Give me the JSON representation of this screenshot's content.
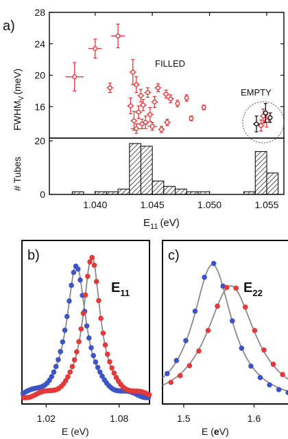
{
  "figure": {
    "panel_a": "a)",
    "panel_b": "b)",
    "panel_c": "c)"
  },
  "chart_data": [
    {
      "type": "scatter",
      "panel": "a-top",
      "ylabel_main": "FWHM",
      "ylabel_sub": "V",
      "ylabel_unit": "(meV)",
      "xlim": [
        1.036,
        1.0565
      ],
      "ylim": [
        12,
        28
      ],
      "yticks": [
        "16",
        "20",
        "24",
        "28"
      ],
      "annotations": [
        "FILLED",
        "EMPTY"
      ],
      "colors": {
        "filled": "#e23a3a",
        "empty_black": "#111111"
      },
      "series": [
        {
          "points": [
            {
              "x": 1.0382,
              "y": 19.8,
              "xerr": 0.0008,
              "yerr": 1.8
            },
            {
              "x": 1.04,
              "y": 23.4,
              "xerr": 0.0006,
              "yerr": 1.2
            },
            {
              "x": 1.042,
              "y": 25.0,
              "xerr": 0.0006,
              "yerr": 1.5
            },
            {
              "x": 1.0413,
              "y": 18.4,
              "xerr": 0.0003,
              "yerr": 0.6
            },
            {
              "x": 1.0433,
              "y": 20.4,
              "xerr": 0.0003,
              "yerr": 1.6
            },
            {
              "x": 1.0436,
              "y": 18.8,
              "xerr": 0.0003,
              "yerr": 1.0
            },
            {
              "x": 1.044,
              "y": 17.4,
              "xerr": 0.0003,
              "yerr": 0.8
            },
            {
              "x": 1.0431,
              "y": 16.1,
              "xerr": 0.0003,
              "yerr": 1.0
            },
            {
              "x": 1.0438,
              "y": 15.3,
              "xerr": 0.0003,
              "yerr": 0.8
            },
            {
              "x": 1.0434,
              "y": 14.2,
              "xerr": 0.0003,
              "yerr": 1.2
            },
            {
              "x": 1.0444,
              "y": 14.0,
              "xerr": 0.0003,
              "yerr": 0.8
            },
            {
              "x": 1.0448,
              "y": 15.0,
              "xerr": 0.0003,
              "yerr": 0.9
            },
            {
              "x": 1.0452,
              "y": 16.6,
              "xerr": 0.0003,
              "yerr": 0.7
            },
            {
              "x": 1.0442,
              "y": 16.2,
              "xerr": 0.0003,
              "yerr": 0.7
            },
            {
              "x": 1.0446,
              "y": 17.8,
              "xerr": 0.0003,
              "yerr": 0.6
            },
            {
              "x": 1.0455,
              "y": 18.4,
              "xerr": 0.0003,
              "yerr": 0.5
            },
            {
              "x": 1.0462,
              "y": 17.6,
              "xerr": 0.0003,
              "yerr": 0.5
            },
            {
              "x": 1.0466,
              "y": 17.0,
              "xerr": 0.0003,
              "yerr": 0.5
            },
            {
              "x": 1.0472,
              "y": 16.4,
              "xerr": 0.0002,
              "yerr": 0.4
            },
            {
              "x": 1.048,
              "y": 17.1,
              "xerr": 0.0002,
              "yerr": 0.4
            },
            {
              "x": 1.0495,
              "y": 15.9,
              "xerr": 0.0002,
              "yerr": 0.3
            },
            {
              "x": 1.0436,
              "y": 13.2,
              "xerr": 0.0005,
              "yerr": 0.6
            },
            {
              "x": 1.0441,
              "y": 13.8,
              "xerr": 0.0005,
              "yerr": 0.6
            },
            {
              "x": 1.045,
              "y": 13.5,
              "xerr": 0.0004,
              "yerr": 0.5
            },
            {
              "x": 1.0458,
              "y": 13.1,
              "xerr": 0.0003,
              "yerr": 0.4
            },
            {
              "x": 1.0463,
              "y": 14.0,
              "xerr": 0.0003,
              "yerr": 0.4
            },
            {
              "x": 1.0484,
              "y": 14.5,
              "xerr": 0.0002,
              "yerr": 0.3
            },
            {
              "x": 1.0547,
              "y": 14.8,
              "xerr": 0.0003,
              "yerr": 0.9
            },
            {
              "x": 1.055,
              "y": 14.2,
              "xerr": 0.0003,
              "yerr": 0.8
            },
            {
              "x": 1.0545,
              "y": 13.6,
              "xerr": 0.0003,
              "yerr": 0.7
            }
          ]
        },
        {
          "points": [
            {
              "x": 1.0541,
              "y": 13.8,
              "xerr": 0.0003,
              "yerr": 1.0
            },
            {
              "x": 1.0549,
              "y": 15.2,
              "xerr": 0.0002,
              "yerr": 1.2
            },
            {
              "x": 1.0553,
              "y": 14.6,
              "xerr": 0.0002,
              "yerr": 0.6
            }
          ]
        }
      ]
    },
    {
      "type": "bar",
      "panel": "a-bottom",
      "xlabel_main": "E",
      "xlabel_sub": "11",
      "xlabel_unit": "(eV)",
      "ylabel": "# Tubes",
      "xlim": [
        1.036,
        1.0565
      ],
      "ylim": [
        0,
        20
      ],
      "xticks": [
        "1.040",
        "1.045",
        "1.050",
        "1.055"
      ],
      "yticks": [
        "0",
        "20"
      ],
      "bins": [
        {
          "start": 1.038,
          "end": 1.039,
          "value": 1
        },
        {
          "start": 1.04,
          "end": 1.041,
          "value": 1
        },
        {
          "start": 1.041,
          "end": 1.042,
          "value": 1
        },
        {
          "start": 1.042,
          "end": 1.043,
          "value": 2
        },
        {
          "start": 1.043,
          "end": 1.044,
          "value": 19
        },
        {
          "start": 1.044,
          "end": 1.045,
          "value": 18
        },
        {
          "start": 1.045,
          "end": 1.046,
          "value": 5
        },
        {
          "start": 1.046,
          "end": 1.047,
          "value": 3
        },
        {
          "start": 1.047,
          "end": 1.048,
          "value": 2
        },
        {
          "start": 1.048,
          "end": 1.049,
          "value": 1
        },
        {
          "start": 1.049,
          "end": 1.05,
          "value": 1
        },
        {
          "start": 1.053,
          "end": 1.054,
          "value": 1
        },
        {
          "start": 1.054,
          "end": 1.055,
          "value": 16
        },
        {
          "start": 1.055,
          "end": 1.056,
          "value": 8
        }
      ]
    },
    {
      "type": "line",
      "panel": "b",
      "label_main": "E",
      "label_sub": "11",
      "xlabel": "E (eV)",
      "xlim": [
        1.0,
        1.105
      ],
      "ylim": [
        0,
        1.08
      ],
      "xticks": [
        "1.02",
        "1.08"
      ],
      "colors": {
        "blue": "#3d55c4",
        "red": "#e23a3a",
        "fit": "#8a8a8a"
      },
      "series": [
        {
          "color": "blue",
          "center": 1.0448,
          "width": 0.0095,
          "amp": 0.89,
          "baseline": 0.03
        },
        {
          "color": "red",
          "center": 1.0575,
          "width": 0.0085,
          "amp": 0.95,
          "baseline": 0.03
        }
      ]
    },
    {
      "type": "line",
      "panel": "c",
      "label_main": "E",
      "label_sub": "22",
      "xlabel_prefix": "E (",
      "xlabel_bold": "e",
      "xlabel_suffix": "V)",
      "xlim": [
        1.47,
        1.655
      ],
      "ylim": [
        0,
        1.08
      ],
      "xticks": [
        "1.5",
        "1.6"
      ],
      "colors": {
        "blue": "#3d55c4",
        "red": "#e23a3a",
        "fit": "#8a8a8a"
      },
      "series": [
        {
          "color": "blue",
          "center": 1.541,
          "width": 0.034,
          "amp": 0.92,
          "baseline": 0.0
        },
        {
          "color": "red",
          "center": 1.567,
          "width": 0.042,
          "amp": 0.78,
          "baseline": 0.0
        }
      ]
    }
  ]
}
